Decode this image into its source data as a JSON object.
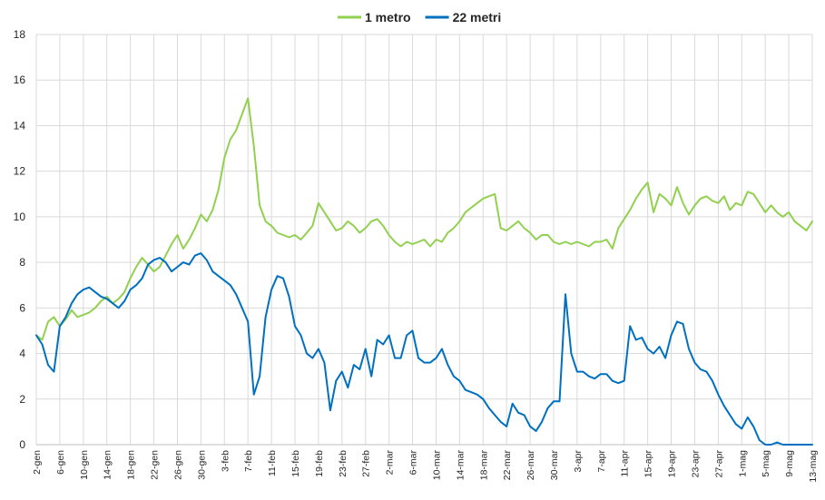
{
  "chart_data": {
    "type": "line",
    "title": "",
    "xlabel": "",
    "ylabel": "",
    "ylim": [
      0,
      18
    ],
    "y_ticks": [
      0,
      2,
      4,
      6,
      8,
      10,
      12,
      14,
      16,
      18
    ],
    "x_range_days": [
      0,
      132
    ],
    "x_tick_labels": [
      "2-gen",
      "6-gen",
      "10-gen",
      "14-gen",
      "18-gen",
      "22-gen",
      "26-gen",
      "30-gen",
      "3-feb",
      "7-feb",
      "11-feb",
      "15-feb",
      "19-feb",
      "23-feb",
      "27-feb",
      "2-mar",
      "6-mar",
      "10-mar",
      "14-mar",
      "18-mar",
      "22-mar",
      "26-mar",
      "30-mar",
      "3-apr",
      "7-apr",
      "11-apr",
      "15-apr",
      "19-apr",
      "23-apr",
      "27-apr",
      "1-mag",
      "5-mag",
      "9-mag",
      "13-mag"
    ],
    "grid": true,
    "legend_position": "top",
    "series": [
      {
        "name": "1 metro",
        "color": "#92D050",
        "x": [
          0,
          1,
          2,
          3,
          4,
          5,
          6,
          7,
          8,
          9,
          10,
          11,
          12,
          13,
          14,
          15,
          16,
          17,
          18,
          19,
          20,
          21,
          22,
          23,
          24,
          25,
          26,
          27,
          28,
          29,
          30,
          31,
          32,
          33,
          34,
          35,
          36,
          37,
          38,
          39,
          40,
          41,
          42,
          43,
          44,
          45,
          46,
          47,
          48,
          49,
          50,
          51,
          52,
          53,
          54,
          55,
          56,
          57,
          58,
          59,
          60,
          61,
          62,
          63,
          64,
          65,
          66,
          67,
          68,
          69,
          70,
          71,
          72,
          73,
          74,
          75,
          76,
          77,
          78,
          79,
          80,
          81,
          82,
          83,
          84,
          85,
          86,
          87,
          88,
          89,
          90,
          91,
          92,
          93,
          94,
          95,
          96,
          97,
          98,
          99,
          100,
          101,
          102,
          103,
          104,
          105,
          106,
          107,
          108,
          109,
          110,
          111,
          112,
          113,
          114,
          115,
          116,
          117,
          118,
          119,
          120,
          121,
          122,
          123,
          124,
          125,
          126,
          127,
          128,
          129,
          130,
          131,
          132
        ],
        "y": [
          4.8,
          4.6,
          5.4,
          5.6,
          5.2,
          5.5,
          5.9,
          5.6,
          5.7,
          5.8,
          6.0,
          6.3,
          6.5,
          6.2,
          6.4,
          6.7,
          7.3,
          7.8,
          8.2,
          7.9,
          7.6,
          7.8,
          8.3,
          8.8,
          9.2,
          8.6,
          9.0,
          9.5,
          10.1,
          9.8,
          10.3,
          11.2,
          12.6,
          13.4,
          13.8,
          14.5,
          15.2,
          13.1,
          10.5,
          9.8,
          9.6,
          9.3,
          9.2,
          9.1,
          9.2,
          9.0,
          9.3,
          9.6,
          10.6,
          10.2,
          9.8,
          9.4,
          9.5,
          9.8,
          9.6,
          9.3,
          9.5,
          9.8,
          9.9,
          9.6,
          9.2,
          8.9,
          8.7,
          8.9,
          8.8,
          8.9,
          9.0,
          8.7,
          9.0,
          8.9,
          9.3,
          9.5,
          9.8,
          10.2,
          10.4,
          10.6,
          10.8,
          10.9,
          11.0,
          9.5,
          9.4,
          9.6,
          9.8,
          9.5,
          9.3,
          9.0,
          9.2,
          9.2,
          8.9,
          8.8,
          8.9,
          8.8,
          8.9,
          8.8,
          8.7,
          8.9,
          8.9,
          9.0,
          8.6,
          9.5,
          9.9,
          10.3,
          10.8,
          11.2,
          11.5,
          10.2,
          11.0,
          10.8,
          10.5,
          11.3,
          10.6,
          10.1,
          10.5,
          10.8,
          10.9,
          10.7,
          10.6,
          10.9,
          10.3,
          10.6,
          10.5,
          11.1,
          11.0,
          10.6,
          10.2,
          10.5,
          10.2,
          10.0,
          10.2,
          9.8,
          9.6,
          9.4,
          9.8
        ]
      },
      {
        "name": "22 metri",
        "color": "#0070C0",
        "x": [
          0,
          1,
          2,
          3,
          4,
          5,
          6,
          7,
          8,
          9,
          10,
          11,
          12,
          13,
          14,
          15,
          16,
          17,
          18,
          19,
          20,
          21,
          22,
          23,
          24,
          25,
          26,
          27,
          28,
          29,
          30,
          31,
          32,
          33,
          34,
          35,
          36,
          37,
          38,
          39,
          40,
          41,
          42,
          43,
          44,
          45,
          46,
          47,
          48,
          49,
          50,
          51,
          52,
          53,
          54,
          55,
          56,
          57,
          58,
          59,
          60,
          61,
          62,
          63,
          64,
          65,
          66,
          67,
          68,
          69,
          70,
          71,
          72,
          73,
          74,
          75,
          76,
          77,
          78,
          79,
          80,
          81,
          82,
          83,
          84,
          85,
          86,
          87,
          88,
          89,
          90,
          91,
          92,
          93,
          94,
          95,
          96,
          97,
          98,
          99,
          100,
          101,
          102,
          103,
          104,
          105,
          106,
          107,
          108,
          109,
          110,
          111,
          112,
          113,
          114,
          115,
          116,
          117,
          118,
          119,
          120,
          121,
          122,
          123,
          124,
          125,
          126,
          127,
          128,
          129,
          130,
          131,
          132
        ],
        "y": [
          4.8,
          4.4,
          3.5,
          3.2,
          5.2,
          5.6,
          6.2,
          6.6,
          6.8,
          6.9,
          6.7,
          6.5,
          6.4,
          6.2,
          6.0,
          6.3,
          6.8,
          7.0,
          7.3,
          7.9,
          8.1,
          8.2,
          8.0,
          7.6,
          7.8,
          8.0,
          7.9,
          8.3,
          8.4,
          8.1,
          7.6,
          7.4,
          7.2,
          7.0,
          6.6,
          6.0,
          5.4,
          2.2,
          3.0,
          5.6,
          6.8,
          7.4,
          7.3,
          6.5,
          5.2,
          4.8,
          4.0,
          3.8,
          4.2,
          3.6,
          1.5,
          2.8,
          3.2,
          2.5,
          3.5,
          3.3,
          4.2,
          3.0,
          4.6,
          4.4,
          4.8,
          3.8,
          3.8,
          4.8,
          5.0,
          3.8,
          3.6,
          3.6,
          3.8,
          4.2,
          3.5,
          3.0,
          2.8,
          2.4,
          2.3,
          2.2,
          2.0,
          1.6,
          1.3,
          1.0,
          0.8,
          1.8,
          1.4,
          1.3,
          0.8,
          0.6,
          1.0,
          1.6,
          1.9,
          1.9,
          6.6,
          4.0,
          3.2,
          3.2,
          3.0,
          2.9,
          3.1,
          3.1,
          2.8,
          2.7,
          2.8,
          5.2,
          4.6,
          4.7,
          4.2,
          4.0,
          4.3,
          3.8,
          4.8,
          5.4,
          5.3,
          4.2,
          3.6,
          3.3,
          3.2,
          2.8,
          2.2,
          1.7,
          1.3,
          0.9,
          0.7,
          1.2,
          0.8,
          0.2,
          0.0,
          0.0,
          0.1,
          0.0,
          0.0,
          0.0,
          0.0,
          0.0,
          0.0
        ]
      }
    ]
  }
}
